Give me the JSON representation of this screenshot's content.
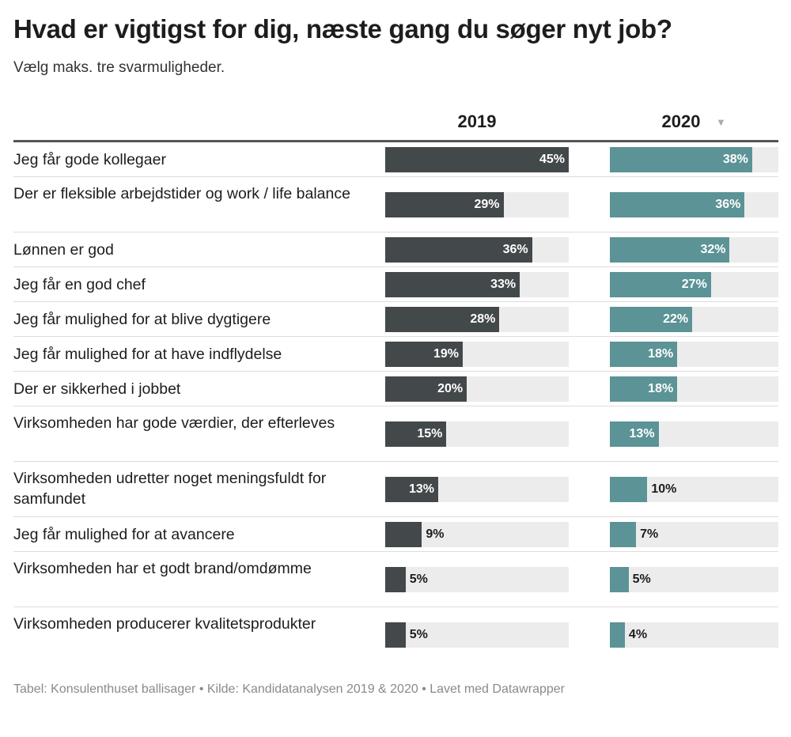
{
  "title": "Hvad er vigtigst for dig, næste gang du søger nyt job?",
  "subtitle": "Vælg maks. tre svarmuligheder.",
  "columns": {
    "c2019": "2019",
    "c2020": "2020"
  },
  "sort_icon": "sort-descending-icon",
  "footer": "Tabel: Konsulenthuset ballisager • Kilde: Kandidatanalysen 2019 & 2020 • Lavet med Datawrapper",
  "colors": {
    "bar2019": "#43484a",
    "bar2020": "#5b9396",
    "track": "#ececec"
  },
  "chart_data": {
    "type": "bar",
    "categories": [
      "Jeg får gode kollegaer",
      "Der er fleksible arbejdstider og work / life balance",
      "Lønnen er god",
      "Jeg får en god chef",
      "Jeg får mulighed for at blive dygtigere",
      "Jeg får mulighed for at have indflydelse",
      "Der er sikkerhed i jobbet",
      "Virksomheden har gode værdier, der efterleves",
      "Virksomheden udretter noget meningsfuldt for samfundet",
      "Jeg får mulighed for at avancere",
      "Virksomheden har et godt brand/omdømme",
      "Virksomheden producerer kvalitetsprodukter"
    ],
    "series": [
      {
        "name": "2019",
        "values": [
          45,
          29,
          36,
          33,
          28,
          19,
          20,
          15,
          13,
          9,
          5,
          5
        ]
      },
      {
        "name": "2020",
        "values": [
          38,
          36,
          32,
          27,
          22,
          18,
          18,
          13,
          10,
          7,
          5,
          4
        ]
      }
    ],
    "value_suffix": "%",
    "xlim": [
      0,
      45
    ]
  }
}
